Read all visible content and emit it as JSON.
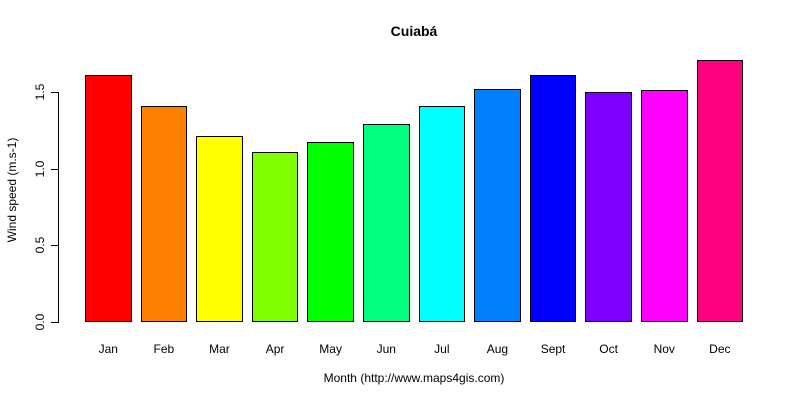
{
  "chart_data": {
    "type": "bar",
    "title": "Cuiabá",
    "xlabel": "Month (http://www.maps4gis.com)",
    "ylabel": "Wind speed (m.s-1)",
    "categories": [
      "Jan",
      "Feb",
      "Mar",
      "Apr",
      "May",
      "Jun",
      "Jul",
      "Aug",
      "Sept",
      "Oct",
      "Nov",
      "Dec"
    ],
    "values": [
      1.61,
      1.41,
      1.21,
      1.11,
      1.17,
      1.29,
      1.41,
      1.52,
      1.61,
      1.5,
      1.51,
      1.71
    ],
    "bar_colors": [
      "#FF0000",
      "#FF8000",
      "#FFFF00",
      "#80FF00",
      "#00FF00",
      "#00FF80",
      "#00FFFF",
      "#0080FF",
      "#0000FF",
      "#8000FF",
      "#FF00FF",
      "#FF0080"
    ],
    "yticks": [
      "0.0",
      "0.5",
      "1.0",
      "1.5"
    ],
    "ylim": [
      0,
      1.75
    ],
    "grid": false,
    "legend": "none",
    "bar_border_color": "#000000",
    "text_color": "#000000",
    "background_color": "#FFFFFF"
  }
}
